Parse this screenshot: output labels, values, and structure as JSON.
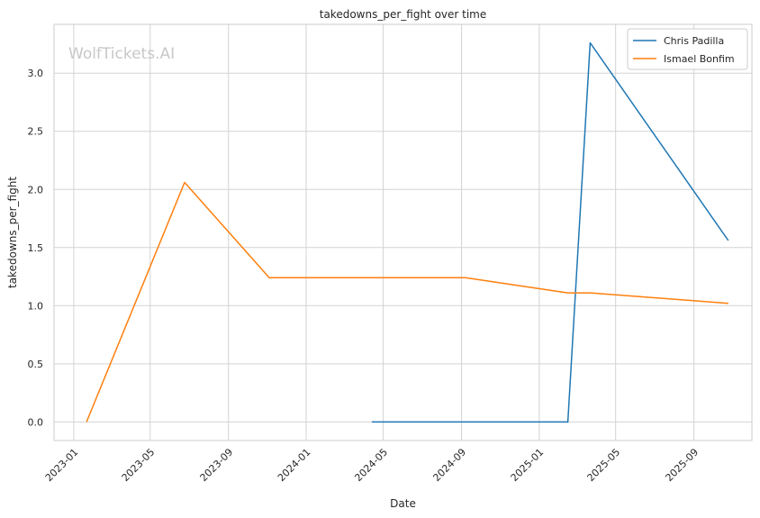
{
  "chart_data": {
    "type": "line",
    "title": "takedowns_per_fight over time",
    "xlabel": "Date",
    "ylabel": "takedowns_per_fight",
    "watermark": "WolfTickets.AI",
    "x_tick_labels": [
      "2023-01",
      "2023-05",
      "2023-09",
      "2024-01",
      "2024-05",
      "2024-09",
      "2025-01",
      "2025-05",
      "2025-09"
    ],
    "x_tick_dates": [
      "2023-01-01",
      "2023-05-01",
      "2023-09-01",
      "2024-01-01",
      "2024-05-01",
      "2024-09-01",
      "2025-01-01",
      "2025-05-01",
      "2025-09-01"
    ],
    "y_ticks": [
      0.0,
      0.5,
      1.0,
      1.5,
      2.0,
      2.5,
      3.0
    ],
    "y_tick_labels": [
      "0.0",
      "0.5",
      "1.0",
      "1.5",
      "2.0",
      "2.5",
      "3.0"
    ],
    "xlim": [
      "2022-12-01",
      "2025-12-01"
    ],
    "ylim": [
      -0.16,
      3.42
    ],
    "grid": true,
    "legend_position": "top-right",
    "series": [
      {
        "name": "Chris Padilla",
        "color": "#1f77b4",
        "points": [
          {
            "x": "2024-04-13",
            "y": 0.0
          },
          {
            "x": "2024-09-07",
            "y": 0.0
          },
          {
            "x": "2025-02-15",
            "y": 0.0
          },
          {
            "x": "2025-03-22",
            "y": 3.26
          },
          {
            "x": "2025-10-25",
            "y": 1.56
          }
        ]
      },
      {
        "name": "Ismael Bonfim",
        "color": "#ff7f0e",
        "points": [
          {
            "x": "2023-01-21",
            "y": 0.0
          },
          {
            "x": "2023-06-24",
            "y": 2.06
          },
          {
            "x": "2023-11-04",
            "y": 1.24
          },
          {
            "x": "2024-09-07",
            "y": 1.24
          },
          {
            "x": "2025-02-15",
            "y": 1.11
          },
          {
            "x": "2025-03-22",
            "y": 1.11
          },
          {
            "x": "2025-10-25",
            "y": 1.02
          }
        ]
      }
    ]
  }
}
